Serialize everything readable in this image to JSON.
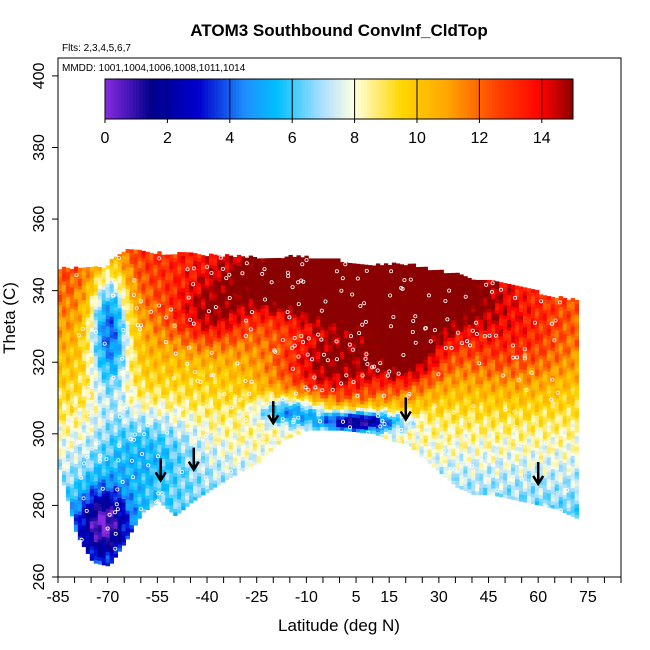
{
  "chart_data": {
    "type": "heatmap",
    "title": "ATOM3 Southbound ConvInf_CldTop",
    "flights_note": "Flts: 2,3,4,5,6,7",
    "dates_note": "MMDD: 1001,1004,1006,1008,1011,1014",
    "xlabel": "Latitude (deg N)",
    "ylabel": "Theta (C)",
    "xlim": [
      -85,
      85
    ],
    "ylim": [
      260,
      405
    ],
    "x_tick_labels": [
      "-85",
      "-70",
      "-55",
      "-40",
      "-25",
      "-10",
      "5",
      "15",
      "30",
      "45",
      "60",
      "75"
    ],
    "x_tick_values": [
      -85,
      -70,
      -55,
      -40,
      -25,
      -10,
      5,
      15,
      30,
      45,
      60,
      75
    ],
    "x_minor_step": 5,
    "y_ticks": [
      260,
      280,
      300,
      320,
      340,
      360,
      380,
      400
    ],
    "colorbar": {
      "range": [
        0,
        15
      ],
      "tick_labels": [
        "0",
        "2",
        "4",
        "6",
        "8",
        "10",
        "12",
        "14"
      ],
      "tick_values": [
        0,
        2,
        4,
        6,
        8,
        10,
        12,
        14
      ],
      "colors": [
        "#8a2be2",
        "#00008b",
        "#0000cd",
        "#1e90ff",
        "#00bfff",
        "#b0e0ff",
        "#ffffe0",
        "#ffd700",
        "#ffa500",
        "#ff4500",
        "#ff0000",
        "#8b0000"
      ],
      "color_stops": [
        0,
        1.5,
        3,
        4.5,
        5.5,
        7,
        8,
        9.5,
        11,
        12.5,
        14,
        15
      ]
    },
    "data_mask": {
      "top": [
        [
          -72,
          346
        ],
        [
          -65,
          351
        ],
        [
          -58,
          350
        ],
        [
          -50,
          350
        ],
        [
          -30,
          349
        ],
        [
          -10,
          349
        ],
        [
          0,
          348
        ],
        [
          10,
          347
        ],
        [
          20,
          347
        ],
        [
          30,
          345
        ],
        [
          40,
          343
        ],
        [
          50,
          342
        ],
        [
          60,
          339
        ],
        [
          65,
          338
        ],
        [
          70,
          337
        ],
        [
          72,
          336
        ]
      ],
      "bottom": [
        [
          -85,
          290
        ],
        [
          -80,
          272
        ],
        [
          -75,
          264
        ],
        [
          -70,
          263
        ],
        [
          -65,
          270
        ],
        [
          -60,
          278
        ],
        [
          -55,
          281
        ],
        [
          -50,
          277
        ],
        [
          -45,
          281
        ],
        [
          -35,
          287
        ],
        [
          -25,
          292
        ],
        [
          -18,
          298
        ],
        [
          -10,
          301
        ],
        [
          0,
          301
        ],
        [
          10,
          300
        ],
        [
          15,
          298
        ],
        [
          20,
          297
        ],
        [
          25,
          293
        ],
        [
          30,
          289
        ],
        [
          35,
          285
        ],
        [
          40,
          283
        ],
        [
          45,
          283
        ],
        [
          50,
          282
        ],
        [
          55,
          281
        ],
        [
          60,
          280
        ],
        [
          65,
          279
        ],
        [
          72,
          276
        ]
      ]
    },
    "hot_spots": [
      {
        "lat": -5,
        "theta": 342,
        "value": 14.5,
        "spread_lat": 30,
        "spread_theta": 9
      },
      {
        "lat": 20,
        "theta": 338,
        "value": 14,
        "spread_lat": 22,
        "spread_theta": 10
      },
      {
        "lat": -2,
        "theta": 318,
        "value": 13,
        "spread_lat": 18,
        "spread_theta": 12
      },
      {
        "lat": 20,
        "theta": 322,
        "value": 12.5,
        "spread_lat": 10,
        "spread_theta": 10
      },
      {
        "lat": -40,
        "theta": 332,
        "value": 11,
        "spread_lat": 12,
        "spread_theta": 8
      },
      {
        "lat": 50,
        "theta": 325,
        "value": 10.5,
        "spread_lat": 22,
        "spread_theta": 15
      }
    ],
    "cold_spots": [
      {
        "lat": 5,
        "theta": 303,
        "value": 0.5,
        "spread_lat": 12,
        "spread_theta": 3
      },
      {
        "lat": -15,
        "theta": 306,
        "value": 4,
        "spread_lat": 10,
        "spread_theta": 4
      },
      {
        "lat": -70,
        "theta": 330,
        "value": 2,
        "spread_lat": 6,
        "spread_theta": 18
      },
      {
        "lat": -72,
        "theta": 275,
        "value": 3,
        "spread_lat": 8,
        "spread_theta": 10
      },
      {
        "lat": -60,
        "theta": 295,
        "value": 6.5,
        "spread_lat": 15,
        "spread_theta": 12
      }
    ],
    "markers_arrows": [
      {
        "lat": -54,
        "theta": 287
      },
      {
        "lat": -44,
        "theta": 290
      },
      {
        "lat": -20,
        "theta": 303
      },
      {
        "lat": 20,
        "theta": 304
      },
      {
        "lat": 60,
        "theta": 286
      }
    ],
    "grid": false,
    "legend_placement": "top"
  }
}
